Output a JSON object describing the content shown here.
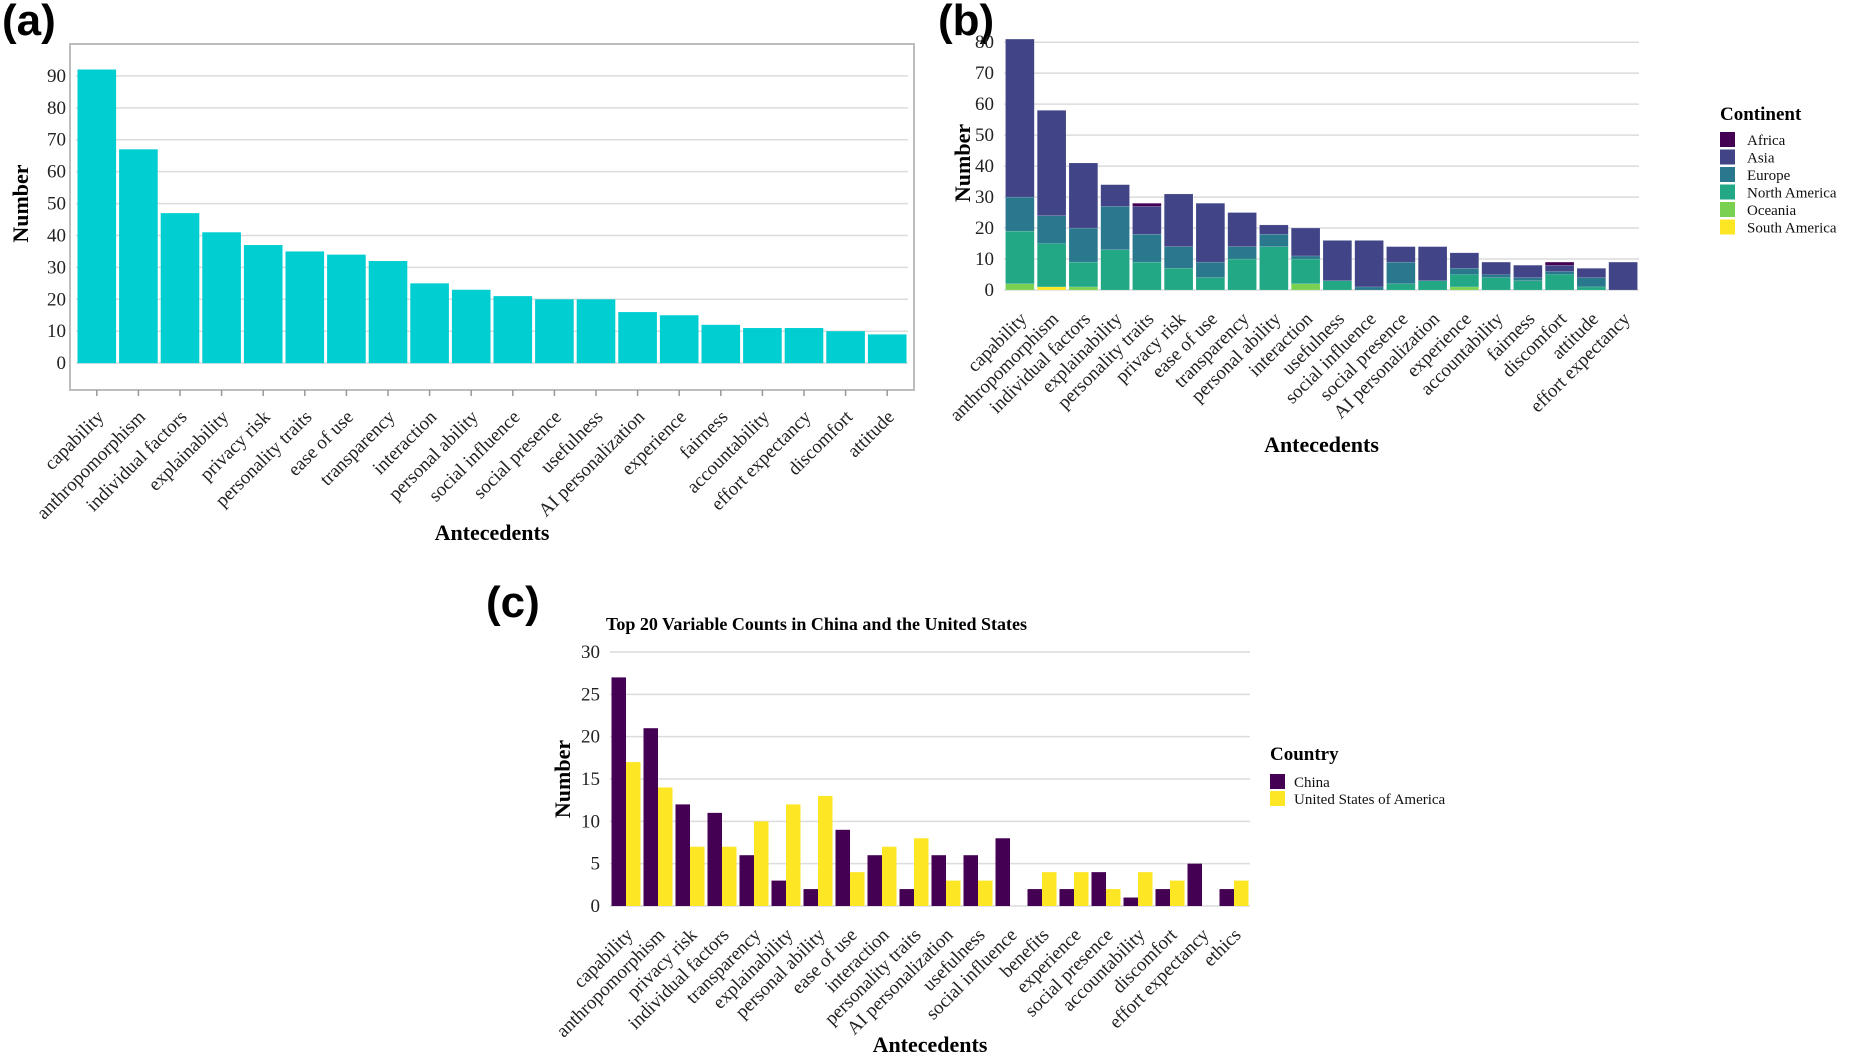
{
  "panels": {
    "a": "(a)",
    "b": "(b)",
    "c": "(c)"
  },
  "chart_data": [
    {
      "id": "a",
      "type": "bar",
      "title": "",
      "xlabel": "Antecedents",
      "ylabel": "Number",
      "ylim": [
        0,
        100
      ],
      "yticks": [
        0,
        10,
        20,
        30,
        40,
        50,
        60,
        70,
        80,
        90
      ],
      "grid": true,
      "color": "#00CED1",
      "categories": [
        "capability",
        "anthropomorphism",
        "individual factors",
        "explainability",
        "privacy risk",
        "personality traits",
        "ease of use",
        "transparency",
        "interaction",
        "personal ability",
        "social influence",
        "social presence",
        "usefulness",
        "AI personalization",
        "experience",
        "fairness",
        "accountability",
        "effort expectancy",
        "discomfort",
        "attitude"
      ],
      "values": [
        92,
        67,
        47,
        41,
        37,
        35,
        34,
        32,
        25,
        23,
        21,
        20,
        20,
        16,
        15,
        12,
        11,
        11,
        10,
        9
      ]
    },
    {
      "id": "b",
      "type": "bar",
      "stacked": true,
      "title": "",
      "xlabel": "Antecedents",
      "ylabel": "Number",
      "ylim": [
        0,
        82
      ],
      "yticks": [
        0,
        10,
        20,
        30,
        40,
        50,
        60,
        70,
        80
      ],
      "grid": true,
      "legend": {
        "title": "Continent",
        "position": "right"
      },
      "categories": [
        "capability",
        "anthropomorphism",
        "individual factors",
        "explainability",
        "personality traits",
        "privacy risk",
        "ease of use",
        "transparency",
        "personal ability",
        "interaction",
        "usefulness",
        "social influence",
        "social presence",
        "AI personalization",
        "experience",
        "accountability",
        "fairness",
        "discomfort",
        "attitude",
        "effort expectancy"
      ],
      "series": [
        {
          "name": "South America",
          "color": "#FDE725",
          "values": [
            0,
            1,
            0,
            0,
            0,
            0,
            0,
            0,
            0,
            0,
            0,
            0,
            0,
            0,
            0,
            0,
            0,
            0,
            0,
            0
          ]
        },
        {
          "name": "Oceania",
          "color": "#7AD151",
          "values": [
            2,
            0,
            1,
            0,
            0,
            0,
            0,
            0,
            0,
            2,
            0,
            0,
            0,
            0,
            1,
            0,
            0,
            0,
            0,
            0
          ]
        },
        {
          "name": "North America",
          "color": "#22A884",
          "values": [
            17,
            14,
            8,
            13,
            9,
            7,
            4,
            10,
            14,
            8,
            3,
            0,
            2,
            3,
            4,
            4,
            3,
            5,
            1,
            0
          ]
        },
        {
          "name": "Europe",
          "color": "#2A788E",
          "values": [
            11,
            9,
            11,
            14,
            9,
            7,
            5,
            4,
            4,
            1,
            0,
            1,
            7,
            0,
            2,
            1,
            1,
            1,
            3,
            0
          ]
        },
        {
          "name": "Asia",
          "color": "#414487",
          "values": [
            51,
            34,
            21,
            7,
            9,
            17,
            19,
            11,
            3,
            9,
            13,
            15,
            5,
            11,
            5,
            4,
            4,
            2,
            3,
            9
          ]
        },
        {
          "name": "Africa",
          "color": "#440154",
          "values": [
            0,
            0,
            0,
            0,
            1,
            0,
            0,
            0,
            0,
            0,
            0,
            0,
            0,
            0,
            0,
            0,
            0,
            1,
            0,
            0
          ]
        }
      ],
      "legend_order": [
        "Africa",
        "Asia",
        "Europe",
        "North America",
        "Oceania",
        "South America"
      ]
    },
    {
      "id": "c",
      "type": "bar",
      "grouped": true,
      "title": "Top 20 Variable Counts in China and the United States",
      "xlabel": "Antecedents",
      "ylabel": "Number",
      "ylim": [
        0,
        30
      ],
      "yticks": [
        0,
        5,
        10,
        15,
        20,
        25,
        30
      ],
      "grid": true,
      "legend": {
        "title": "Country",
        "position": "right"
      },
      "categories": [
        "capability",
        "anthropomorphism",
        "privacy risk",
        "individual factors",
        "transparency",
        "explainability",
        "personal ability",
        "ease of use",
        "interaction",
        "personality traits",
        "AI personalization",
        "usefulness",
        "social influence",
        "benefits",
        "experience",
        "social presence",
        "accountability",
        "discomfort",
        "effort expectancy",
        "ethics"
      ],
      "series": [
        {
          "name": "China",
          "color": "#440154",
          "values": [
            27,
            21,
            12,
            11,
            6,
            3,
            2,
            9,
            6,
            2,
            6,
            6,
            8,
            2,
            2,
            4,
            1,
            2,
            5,
            2
          ]
        },
        {
          "name": "United States of America",
          "color": "#FDE725",
          "values": [
            17,
            14,
            7,
            7,
            10,
            12,
            13,
            4,
            7,
            8,
            3,
            3,
            0,
            4,
            4,
            2,
            4,
            3,
            0,
            3
          ]
        }
      ]
    }
  ]
}
